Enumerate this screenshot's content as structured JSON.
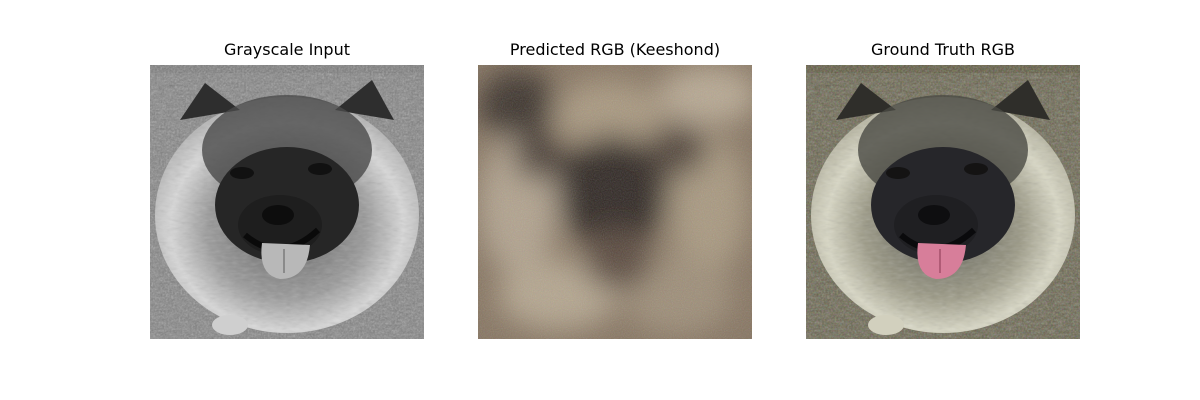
{
  "panels": [
    {
      "title": "Grayscale Input",
      "image": "keeshond-face-grayscale",
      "palette": {
        "grass_a": "#6b6b6b",
        "grass_b": "#8a8a8a",
        "fur_light": "#d8d8d8",
        "fur_mid": "#9a9a9a",
        "fur_dark": "#3a3a3a",
        "mask": "#262626",
        "nose": "#0d0d0d",
        "tongue": "#b8b8b8",
        "eye": "#1a1a1a"
      }
    },
    {
      "title": "Predicted RGB (Keeshond)",
      "image": "keeshond-face-predicted-blurry-colorization",
      "palette": {
        "base": "#6e5d4f",
        "light": "#b7a892",
        "dark": "#2f2620",
        "mid": "#85735f"
      }
    },
    {
      "title": "Ground Truth RGB",
      "image": "keeshond-face-color",
      "palette": {
        "grass_a": "#56513a",
        "grass_b": "#7a7457",
        "fur_light": "#d9d8c5",
        "fur_mid": "#9c9a86",
        "fur_dark": "#3b3a33",
        "mask": "#26262a",
        "nose": "#0e0e10",
        "tongue": "#d77e9a",
        "eye": "#1c1b1b"
      }
    }
  ]
}
